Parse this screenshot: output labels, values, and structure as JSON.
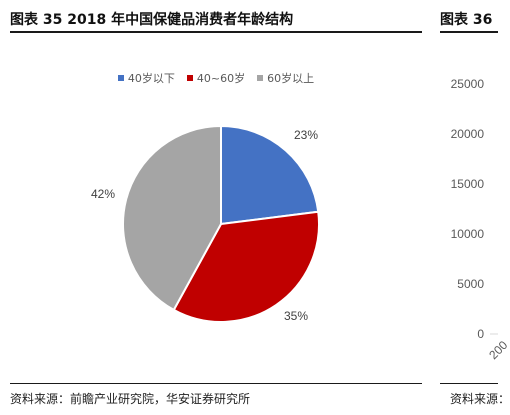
{
  "left_title": "图表 35 2018 年中国保健品消费者年龄结构",
  "right_title": "图表 36",
  "source_left": "资料来源：前瞻产业研究院，华安证券研究所",
  "source_right": "资料来源：",
  "chart_data": [
    {
      "type": "pie",
      "title": "",
      "legend_position": "top",
      "series": [
        {
          "name": "40岁以下",
          "value": 23,
          "label": "23%",
          "color": "#4472C4"
        },
        {
          "name": "40~60岁",
          "value": 35,
          "label": "35%",
          "color": "#C00000"
        },
        {
          "name": "60岁以上",
          "value": 42,
          "label": "42%",
          "color": "#A5A5A5"
        }
      ]
    },
    {
      "type": "bar",
      "title": "",
      "ylim": [
        0,
        25000
      ],
      "yticks": [
        "25000",
        "20000",
        "15000",
        "10000",
        "5000",
        "0"
      ],
      "xtick_partial": "200",
      "note": "partially visible; only y axis shown"
    }
  ]
}
